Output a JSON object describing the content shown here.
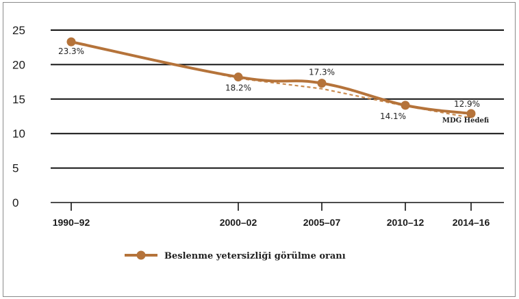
{
  "chart_data": {
    "type": "line",
    "title": "",
    "xlabel": "",
    "ylabel": "",
    "ylim": [
      0,
      25
    ],
    "yticks": [
      0,
      5,
      10,
      15,
      20,
      25
    ],
    "grid": true,
    "legend_position": "bottom-center",
    "categories": [
      "1990–92",
      "2000–02",
      "2005–07",
      "2010–12",
      "2014–16"
    ],
    "series": [
      {
        "name": "Beslenme yetersizliği görülme oranı",
        "style": "solid",
        "color": "#b5733a",
        "values": [
          23.3,
          18.2,
          17.3,
          14.1,
          12.9
        ],
        "labels": [
          "23.3%",
          "18.2%",
          "17.3%",
          "14.1%",
          "12.9%"
        ]
      },
      {
        "name": "",
        "style": "dashed",
        "color": "#c98a4e",
        "values": [
          23.3,
          18.0,
          16.5,
          14.0,
          12.3
        ]
      }
    ],
    "annotations": [
      {
        "text": "MDG Hedefi",
        "category": "2014–16",
        "value": 12.0
      }
    ]
  }
}
